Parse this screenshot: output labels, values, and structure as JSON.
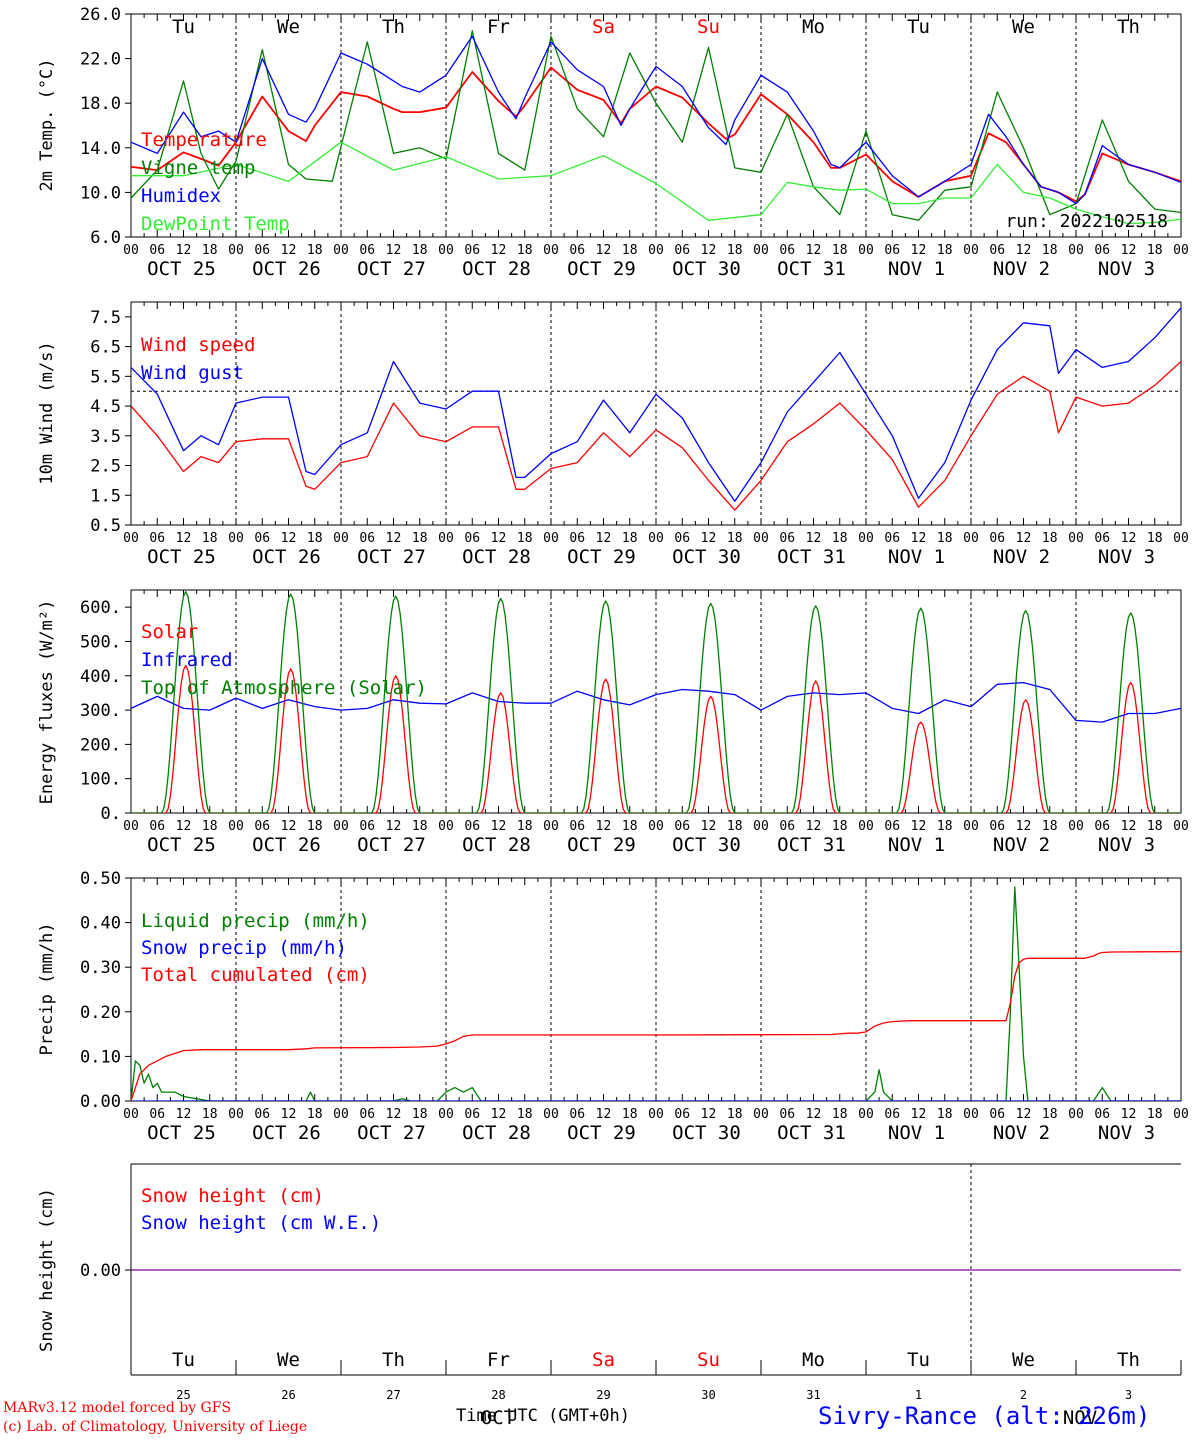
{
  "footer": {
    "model_line": "MARv3.12 model forced by GFS",
    "lab_line": "(c) Lab. of Climatology, University of Liege",
    "xlabel": "Time UTC (GMT+0h)",
    "station": "Sivry-Rance (alt: 226m)",
    "month_ghost_1": "OCT",
    "month_ghost_2": "NOV"
  },
  "x_axis": {
    "hour_ticks": [
      "00",
      "06",
      "12",
      "18"
    ],
    "dates": [
      "OCT 25",
      "OCT 26",
      "OCT 27",
      "OCT 28",
      "OCT 29",
      "OCT 30",
      "OCT 31",
      "NOV  1",
      "NOV  2",
      "NOV  3"
    ],
    "weekdays": [
      "Tu",
      "We",
      "Th",
      "Fr",
      "Sa",
      "Su",
      "Mo",
      "Tu",
      "We",
      "Th"
    ],
    "weekday_colors": [
      "#000000",
      "#000000",
      "#000000",
      "#000000",
      "#ff0000",
      "#ff0000",
      "#000000",
      "#000000",
      "#000000",
      "#000000"
    ],
    "day_numbers": [
      "25",
      "26",
      "27",
      "28",
      "29",
      "30",
      "31",
      "1",
      "2",
      "3"
    ]
  },
  "colors": {
    "red": "#ff0000",
    "green": "#008000",
    "blue": "#0000ff",
    "lightgreen": "#33ee33",
    "purple": "#8000a0"
  },
  "chart_data": [
    {
      "type": "line",
      "ylabel": "2m Temp. (°C)",
      "ylim": [
        6.0,
        26.0
      ],
      "ytick_labels": [
        "6.0",
        "10.0",
        "14.0",
        "18.0",
        "22.0",
        "26.0"
      ],
      "annotation": "run: 2022102518",
      "x_unit": "hours since OCT 25 00 UTC",
      "series": [
        {
          "name": "Temperature",
          "color": "#ff0000",
          "x": [
            0,
            6,
            12,
            16,
            20,
            24,
            30,
            36,
            40,
            42,
            48,
            54,
            60,
            62,
            66,
            72,
            78,
            84,
            88,
            90,
            96,
            102,
            108,
            112,
            114,
            120,
            126,
            132,
            136,
            138,
            144,
            150,
            156,
            160,
            162,
            168,
            174,
            180,
            186,
            192,
            196,
            200,
            204,
            208,
            212,
            216,
            218,
            222,
            228,
            234,
            240
          ],
          "y": [
            12.3,
            12.0,
            13.6,
            13.0,
            12.4,
            14.5,
            18.6,
            15.5,
            14.6,
            16.0,
            19.0,
            18.6,
            17.5,
            17.2,
            17.2,
            17.6,
            20.8,
            18.2,
            16.8,
            17.8,
            21.2,
            19.2,
            18.3,
            16.2,
            17.5,
            19.5,
            18.5,
            16.2,
            14.8,
            15.2,
            18.8,
            17.0,
            14.5,
            12.2,
            12.2,
            13.4,
            11.0,
            9.6,
            11.0,
            11.5,
            15.3,
            14.5,
            12.5,
            10.5,
            10.0,
            9.2,
            9.8,
            13.5,
            12.5,
            11.8,
            11.0
          ]
        },
        {
          "name": "Vigne temp",
          "color": "#008000",
          "x": [
            0,
            6,
            12,
            16,
            20,
            24,
            30,
            36,
            40,
            46,
            54,
            60,
            66,
            72,
            78,
            84,
            90,
            96,
            102,
            108,
            114,
            120,
            126,
            132,
            138,
            144,
            150,
            156,
            162,
            168,
            174,
            180,
            186,
            192,
            198,
            204,
            210,
            216,
            222,
            228,
            234,
            240
          ],
          "y": [
            9.5,
            12.0,
            20.0,
            13.5,
            10.3,
            12.8,
            22.8,
            12.5,
            11.2,
            11.0,
            23.5,
            13.5,
            14.0,
            13.0,
            24.5,
            13.5,
            12.0,
            24.0,
            17.5,
            15.0,
            22.5,
            18.0,
            14.5,
            23.0,
            12.2,
            11.8,
            17.0,
            10.5,
            8.0,
            15.5,
            8.0,
            7.5,
            10.2,
            10.5,
            19.0,
            14.0,
            8.0,
            9.0,
            16.5,
            11.0,
            8.5,
            8.2
          ]
        },
        {
          "name": "Humidex",
          "color": "#0000ff",
          "x": [
            0,
            6,
            12,
            16,
            20,
            24,
            30,
            36,
            40,
            42,
            48,
            54,
            60,
            62,
            66,
            72,
            78,
            84,
            88,
            90,
            96,
            102,
            108,
            112,
            114,
            120,
            126,
            132,
            136,
            138,
            144,
            150,
            156,
            160,
            162,
            168,
            174,
            180,
            186,
            192,
            196,
            200,
            204,
            208,
            212,
            216,
            218,
            222,
            228,
            234,
            240
          ],
          "y": [
            14.5,
            13.5,
            17.2,
            15.0,
            15.5,
            14.5,
            22.0,
            17.0,
            16.3,
            17.5,
            22.5,
            21.5,
            20.0,
            19.5,
            19.0,
            20.5,
            24.0,
            19.0,
            16.6,
            18.5,
            23.5,
            21.0,
            19.5,
            16.0,
            17.5,
            21.3,
            19.5,
            15.8,
            14.3,
            16.5,
            20.5,
            19.0,
            15.5,
            12.5,
            12.2,
            14.5,
            11.5,
            9.6,
            11.0,
            12.5,
            17.0,
            15.0,
            12.5,
            10.5,
            10.0,
            9.0,
            9.8,
            14.2,
            12.5,
            11.8,
            10.9
          ]
        },
        {
          "name": "DewPoint Temp",
          "color": "#33ee33",
          "x": [
            0,
            12,
            24,
            36,
            48,
            60,
            72,
            84,
            96,
            108,
            120,
            132,
            144,
            150,
            156,
            162,
            168,
            174,
            180,
            186,
            192,
            198,
            204,
            210,
            216,
            222,
            228,
            234,
            240
          ],
          "y": [
            11.5,
            11.5,
            12.5,
            11.0,
            14.5,
            12.0,
            13.2,
            11.2,
            11.5,
            13.3,
            10.8,
            7.5,
            8.0,
            10.9,
            10.5,
            10.2,
            10.3,
            9.0,
            9.0,
            9.5,
            9.5,
            12.5,
            10.0,
            9.5,
            8.5,
            7.8,
            7.2,
            7.3,
            7.6
          ]
        }
      ]
    },
    {
      "type": "line",
      "ylabel": "10m Wind (m/s)",
      "ylim": [
        0.5,
        8.0
      ],
      "ytick_labels": [
        "0.5",
        "1.5",
        "2.5",
        "3.5",
        "4.5",
        "5.5",
        "6.5",
        "7.5"
      ],
      "reference_line": 5.0,
      "series": [
        {
          "name": "Wind speed",
          "color": "#ff0000",
          "x": [
            0,
            6,
            12,
            16,
            20,
            24,
            30,
            36,
            40,
            42,
            48,
            54,
            60,
            66,
            72,
            78,
            84,
            88,
            90,
            96,
            102,
            108,
            114,
            120,
            126,
            132,
            138,
            144,
            150,
            156,
            162,
            168,
            174,
            180,
            186,
            192,
            198,
            204,
            210,
            212,
            216,
            222,
            228,
            234,
            240
          ],
          "y": [
            4.5,
            3.5,
            2.3,
            2.8,
            2.6,
            3.3,
            3.4,
            3.4,
            1.8,
            1.7,
            2.6,
            2.8,
            4.6,
            3.5,
            3.3,
            3.8,
            3.8,
            1.7,
            1.7,
            2.4,
            2.6,
            3.6,
            2.8,
            3.7,
            3.1,
            2.0,
            1.0,
            2.0,
            3.3,
            3.9,
            4.6,
            3.7,
            2.7,
            1.1,
            2.0,
            3.5,
            4.9,
            5.5,
            5.0,
            3.6,
            4.8,
            4.5,
            4.6,
            5.2,
            6.0
          ]
        },
        {
          "name": "Wind gust",
          "color": "#0000ff",
          "x": [
            0,
            6,
            12,
            16,
            20,
            24,
            30,
            36,
            40,
            42,
            48,
            54,
            60,
            66,
            72,
            78,
            84,
            88,
            90,
            96,
            102,
            108,
            114,
            120,
            126,
            132,
            138,
            144,
            150,
            156,
            162,
            168,
            174,
            180,
            186,
            192,
            198,
            204,
            210,
            212,
            216,
            222,
            228,
            234,
            240
          ],
          "y": [
            5.8,
            4.9,
            3.0,
            3.5,
            3.2,
            4.6,
            4.8,
            4.8,
            2.3,
            2.2,
            3.2,
            3.6,
            6.0,
            4.6,
            4.4,
            5.0,
            5.0,
            2.1,
            2.1,
            2.9,
            3.3,
            4.7,
            3.6,
            4.9,
            4.1,
            2.6,
            1.3,
            2.6,
            4.3,
            5.3,
            6.3,
            4.9,
            3.5,
            1.4,
            2.6,
            4.7,
            6.4,
            7.3,
            7.2,
            5.6,
            6.4,
            5.8,
            6.0,
            6.8,
            7.8
          ]
        }
      ]
    },
    {
      "type": "line",
      "ylabel": "Energy fluxes (W/m²)",
      "ylim": [
        0,
        650
      ],
      "ytick_labels": [
        "0.",
        "100.",
        "200.",
        "300.",
        "400.",
        "500.",
        "600."
      ],
      "series": [
        {
          "name": "Solar",
          "color": "#ff0000",
          "peaks": [
            430,
            420,
            400,
            350,
            390,
            340,
            385,
            265,
            330,
            380
          ]
        },
        {
          "name": "Infrared",
          "color": "#0000ff",
          "x": [
            0,
            6,
            12,
            18,
            24,
            30,
            36,
            42,
            48,
            54,
            60,
            66,
            72,
            78,
            84,
            90,
            96,
            102,
            108,
            114,
            120,
            126,
            132,
            138,
            144,
            150,
            156,
            162,
            168,
            174,
            180,
            186,
            192,
            198,
            204,
            210,
            216,
            222,
            228,
            234,
            240
          ],
          "y": [
            305,
            340,
            305,
            300,
            335,
            305,
            330,
            310,
            300,
            305,
            330,
            320,
            318,
            350,
            325,
            320,
            320,
            355,
            330,
            315,
            345,
            360,
            355,
            345,
            300,
            340,
            350,
            345,
            350,
            305,
            290,
            330,
            310,
            375,
            380,
            360,
            270,
            265,
            290,
            290,
            305
          ]
        },
        {
          "name": "Top of Atmosphere (Solar)",
          "color": "#008000",
          "peaks": [
            645,
            638,
            632,
            625,
            618,
            611,
            604,
            597,
            590,
            583
          ]
        }
      ]
    },
    {
      "type": "line",
      "ylabel": "Precip (mm/h)",
      "ylim": [
        0.0,
        0.5
      ],
      "ytick_labels": [
        "0.00",
        "0.10",
        "0.20",
        "0.30",
        "0.40",
        "0.50"
      ],
      "series": [
        {
          "name": "Liquid precip (mm/h)",
          "color": "#008000",
          "x": [
            0,
            1,
            2,
            3,
            4,
            5,
            6,
            7,
            8,
            10,
            12,
            18,
            20,
            40,
            41,
            42,
            44,
            60,
            62,
            64,
            66,
            70,
            72,
            74,
            76,
            78,
            80,
            168,
            170,
            171,
            172,
            174,
            176,
            200,
            201,
            202,
            203,
            204,
            205,
            206,
            220,
            221,
            222,
            223,
            224,
            240
          ],
          "y": [
            0,
            0.09,
            0.08,
            0.04,
            0.06,
            0.03,
            0.04,
            0.02,
            0.02,
            0.02,
            0.01,
            0,
            0,
            0,
            0.02,
            0,
            0,
            0,
            0.005,
            0,
            0,
            0,
            0.02,
            0.03,
            0.02,
            0.03,
            0,
            0,
            0.02,
            0.07,
            0.02,
            0,
            0,
            0,
            0.2,
            0.48,
            0.3,
            0.1,
            0,
            0,
            0,
            0.015,
            0.03,
            0.015,
            0,
            0
          ]
        },
        {
          "name": "Snow precip (mm/h)",
          "color": "#0000ff",
          "x": [
            0,
            240
          ],
          "y": [
            0,
            0
          ]
        },
        {
          "name": "Total cumulated (cm)",
          "color": "#ff0000",
          "x": [
            0,
            2,
            4,
            8,
            12,
            16,
            36,
            40,
            42,
            60,
            66,
            70,
            72,
            74,
            76,
            78,
            120,
            160,
            164,
            166,
            168,
            170,
            172,
            174,
            178,
            200,
            201,
            202,
            203,
            204,
            205,
            206,
            218,
            220,
            221,
            222,
            224,
            240
          ],
          "y": [
            0.0,
            0.06,
            0.08,
            0.1,
            0.113,
            0.115,
            0.115,
            0.117,
            0.119,
            0.12,
            0.121,
            0.123,
            0.128,
            0.135,
            0.145,
            0.148,
            0.148,
            0.149,
            0.152,
            0.152,
            0.155,
            0.168,
            0.175,
            0.178,
            0.18,
            0.18,
            0.22,
            0.28,
            0.31,
            0.318,
            0.32,
            0.32,
            0.32,
            0.325,
            0.33,
            0.333,
            0.334,
            0.335
          ]
        }
      ]
    },
    {
      "type": "line",
      "ylabel": "Snow height (cm)",
      "ytick_labels": [
        "0.00"
      ],
      "series": [
        {
          "name": "Snow height (cm)",
          "color": "#ff0000",
          "x": [
            0,
            240
          ],
          "y": [
            0,
            0
          ]
        },
        {
          "name": "Snow height (cm W.E.)",
          "color": "#0000ff",
          "x": [
            0,
            240
          ],
          "y": [
            0,
            0
          ]
        }
      ]
    }
  ]
}
